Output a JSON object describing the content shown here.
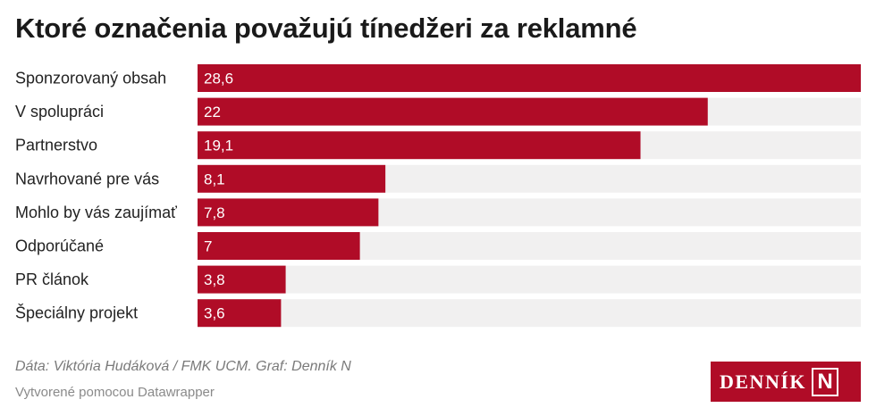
{
  "title": "Ktoré označenia považujú tínedžeri za reklamné",
  "colors": {
    "bar": "#b00c27",
    "track": "#f1f0f0",
    "logo_bg": "#b00c27"
  },
  "chart_data": {
    "type": "bar",
    "orientation": "horizontal",
    "categories": [
      "Sponzorovaný obsah",
      "V spolupráci",
      "Partnerstvo",
      "Navrhované pre vás",
      "Mohlo by vás zaujímať",
      "Odporúčané",
      "PR článok",
      "Špeciálny projekt"
    ],
    "values": [
      28.6,
      22,
      19.1,
      8.1,
      7.8,
      7,
      3.8,
      3.6
    ],
    "value_labels": [
      "28,6",
      "22",
      "19,1",
      "8,1",
      "7,8",
      "7",
      "3,8",
      "3,6"
    ],
    "xlim": [
      0,
      28.6
    ],
    "grid": false
  },
  "footer": {
    "source": "Dáta: Viktória Hudáková / FMK UCM. Graf: Denník N",
    "credit": "Vytvorené pomocou Datawrapper"
  },
  "logo": {
    "text": "DENNÍK",
    "mark": "N"
  }
}
